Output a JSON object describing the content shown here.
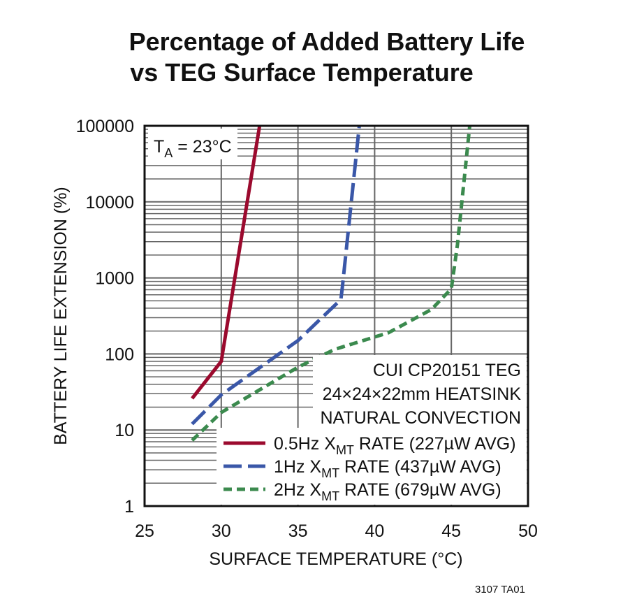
{
  "chart_data": {
    "type": "line",
    "title": [
      "Percentage of Added Battery Life",
      "vs TEG Surface Temperature"
    ],
    "xlabel": "SURFACE TEMPERATURE (°C)",
    "ylabel": "BATTERY LIFE EXTENSION (%)",
    "xlim": [
      25,
      50
    ],
    "ylim": [
      1,
      100000
    ],
    "yscale": "log",
    "grid": true,
    "xticks": [
      "25",
      "30",
      "35",
      "40",
      "45",
      "50"
    ],
    "yticks": [
      "1",
      "10",
      "100",
      "1000",
      "10000",
      "100000"
    ],
    "annotation_ta": {
      "main": "T",
      "sub": "A",
      "rest": " = 23°C"
    },
    "annotations": [
      "CUI CP20151 TEG",
      "24×24×22mm HEATSINK",
      "NATURAL CONVECTION"
    ],
    "legend_position": "bottom-right",
    "series": [
      {
        "name": "0.5Hz XMT RATE (227µW AVG)",
        "label_pre": "0.5Hz X",
        "label_sub": "MT",
        "label_post": " RATE (227µW AVG)",
        "color": "#9b0a2e",
        "dash": "solid",
        "x": [
          28.1,
          30,
          32.5
        ],
        "y": [
          26,
          80,
          100000
        ]
      },
      {
        "name": "1Hz XMT RATE (437µW AVG)",
        "label_pre": "1Hz X",
        "label_sub": "MT",
        "label_post": " RATE (437µW AVG)",
        "color": "#3a57a8",
        "dash": "long-dash",
        "x": [
          28.1,
          30,
          35,
          37.8,
          37.9,
          39.0
        ],
        "y": [
          12,
          29,
          150,
          520,
          770,
          100000
        ]
      },
      {
        "name": "2Hz XMT RATE (679µW AVG)",
        "label_pre": "2Hz X",
        "label_sub": "MT",
        "label_post": " RATE (679µW AVG)",
        "color": "#3b8a4e",
        "dash": "short-dash",
        "x": [
          28.1,
          30,
          35,
          37.4,
          40.9,
          43.7,
          45.0,
          45.4,
          46.2
        ],
        "y": [
          7.3,
          17,
          67,
          115,
          190,
          384,
          720,
          2750,
          100000
        ]
      }
    ],
    "figure_id": "3107 TA01"
  }
}
